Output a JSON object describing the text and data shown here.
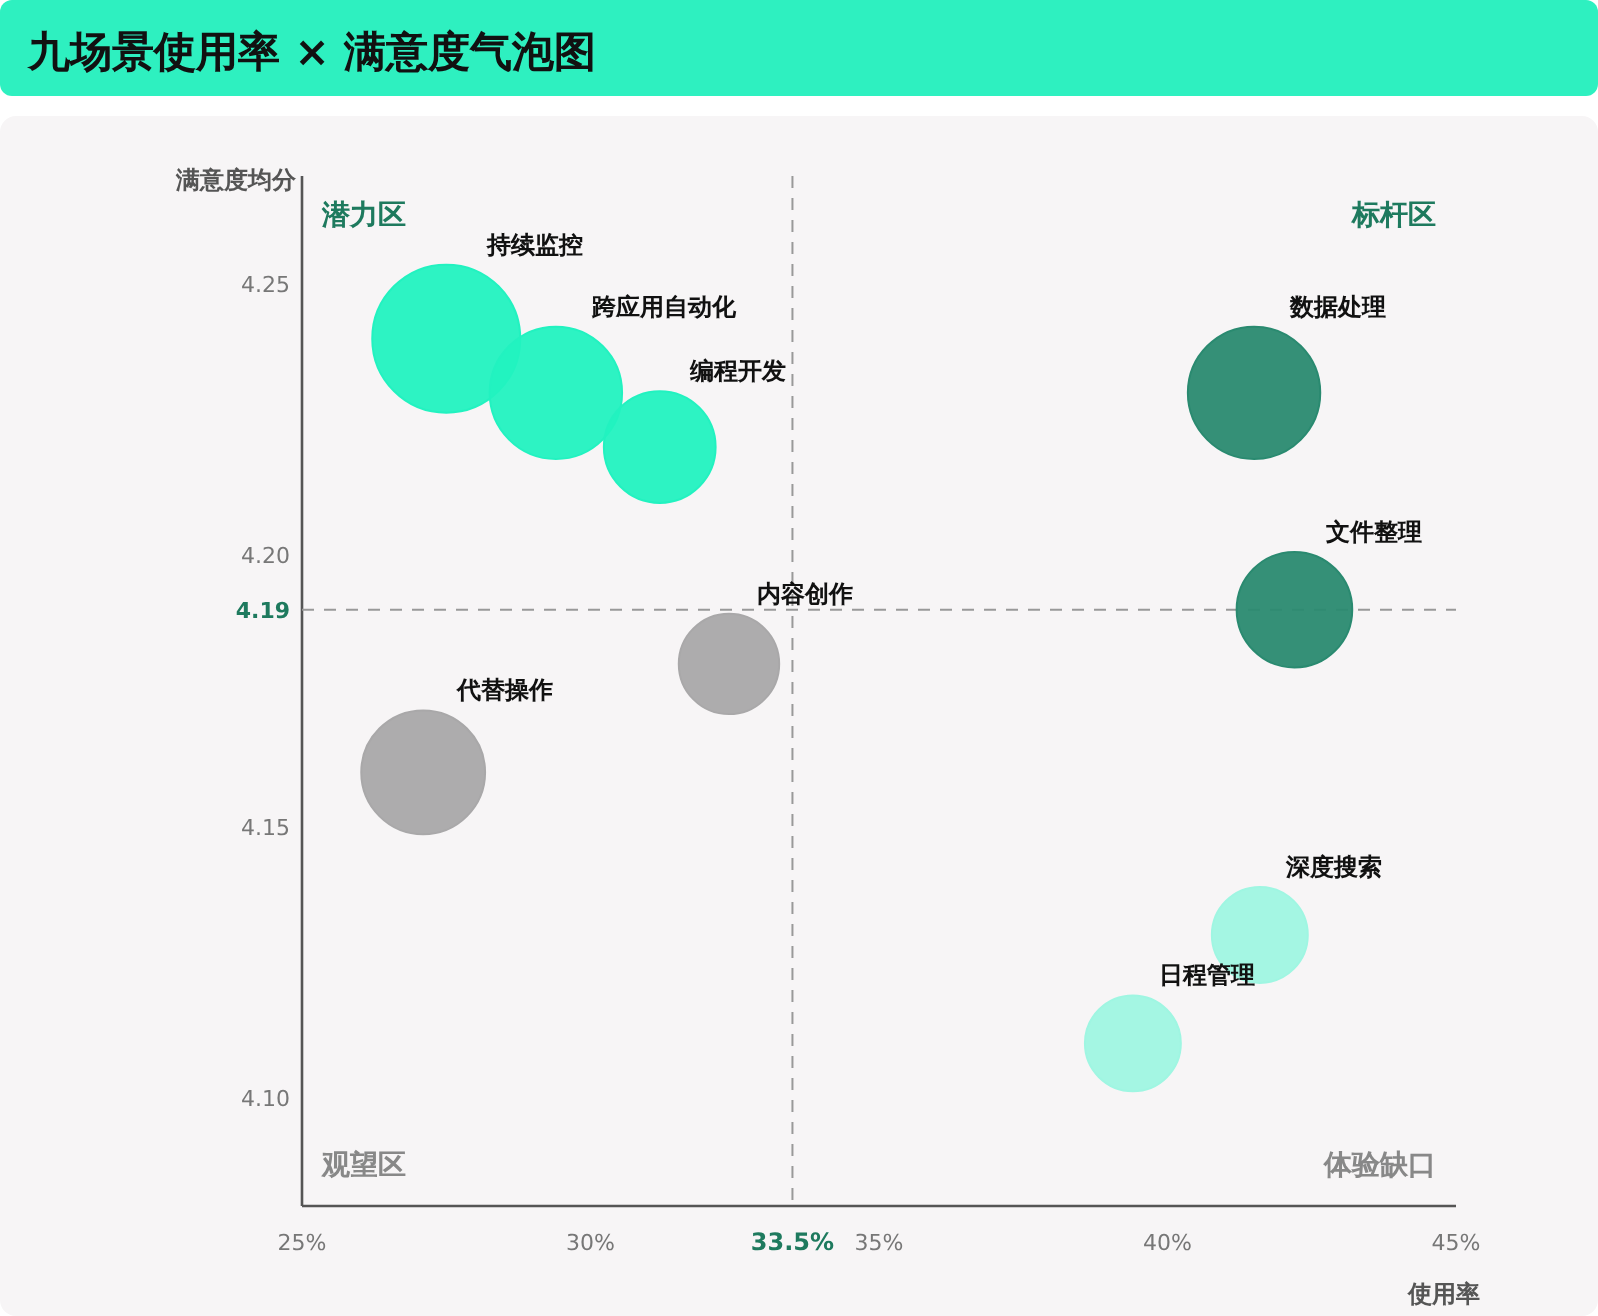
{
  "chart_data": {
    "type": "bubble",
    "title": "九场景使用率 × 满意度气泡图",
    "xlabel": "使用率",
    "ylabel": "满意度均分",
    "xlim": [
      25,
      45
    ],
    "ylim": [
      4.08,
      4.27
    ],
    "xticks": [
      {
        "value": 25,
        "label": "25%"
      },
      {
        "value": 30,
        "label": "30%"
      },
      {
        "value": 35,
        "label": "35%"
      },
      {
        "value": 40,
        "label": "40%"
      },
      {
        "value": 45,
        "label": "45%"
      }
    ],
    "yticks": [
      {
        "value": 4.1,
        "label": "4.10"
      },
      {
        "value": 4.15,
        "label": "4.15"
      },
      {
        "value": 4.2,
        "label": "4.20"
      },
      {
        "value": 4.25,
        "label": "4.25"
      }
    ],
    "grid": false,
    "legend": false,
    "ref_lines": [
      {
        "axis": "x",
        "value": 33.5,
        "label": "33.5%",
        "line_style": "dashed"
      },
      {
        "axis": "y",
        "value": 4.19,
        "label": "4.19",
        "line_style": "dashed"
      }
    ],
    "annotations": [
      "潜力区",
      "标杆区",
      "观望区",
      "体验缺口"
    ],
    "series": [
      {
        "name": "持续监控",
        "color": "#22f2c0",
        "x": [
          27.5
        ],
        "values": [
          4.24
        ],
        "sizes": [
          1
        ]
      },
      {
        "name": "跨应用自动化",
        "color": "#22f2c0",
        "x": [
          29.4
        ],
        "values": [
          4.23
        ],
        "sizes": [
          0.8
        ]
      },
      {
        "name": "编程开发",
        "color": "#22f2c0",
        "x": [
          31.2
        ],
        "values": [
          4.22
        ],
        "sizes": [
          0.57
        ]
      },
      {
        "name": "数据处理",
        "color": "#2a8a70",
        "x": [
          41.5
        ],
        "values": [
          4.23
        ],
        "sizes": [
          0.8
        ]
      },
      {
        "name": "文件整理",
        "color": "#2a8a70",
        "x": [
          42.2
        ],
        "values": [
          4.19
        ],
        "sizes": [
          0.61
        ]
      },
      {
        "name": "内容创作",
        "color": "#a9a8a9",
        "x": [
          32.4
        ],
        "values": [
          4.18
        ],
        "sizes": [
          0.46
        ]
      },
      {
        "name": "代替操作",
        "color": "#a9a8a9",
        "x": [
          27.1
        ],
        "values": [
          4.16
        ],
        "sizes": [
          0.7
        ]
      },
      {
        "name": "深度搜索",
        "color": "#9ff6e2",
        "x": [
          41.6
        ],
        "values": [
          4.13
        ],
        "sizes": [
          0.42
        ]
      },
      {
        "name": "日程管理",
        "color": "#9ff6e2",
        "x": [
          39.4
        ],
        "values": [
          4.11
        ],
        "sizes": [
          0.42
        ]
      }
    ]
  }
}
